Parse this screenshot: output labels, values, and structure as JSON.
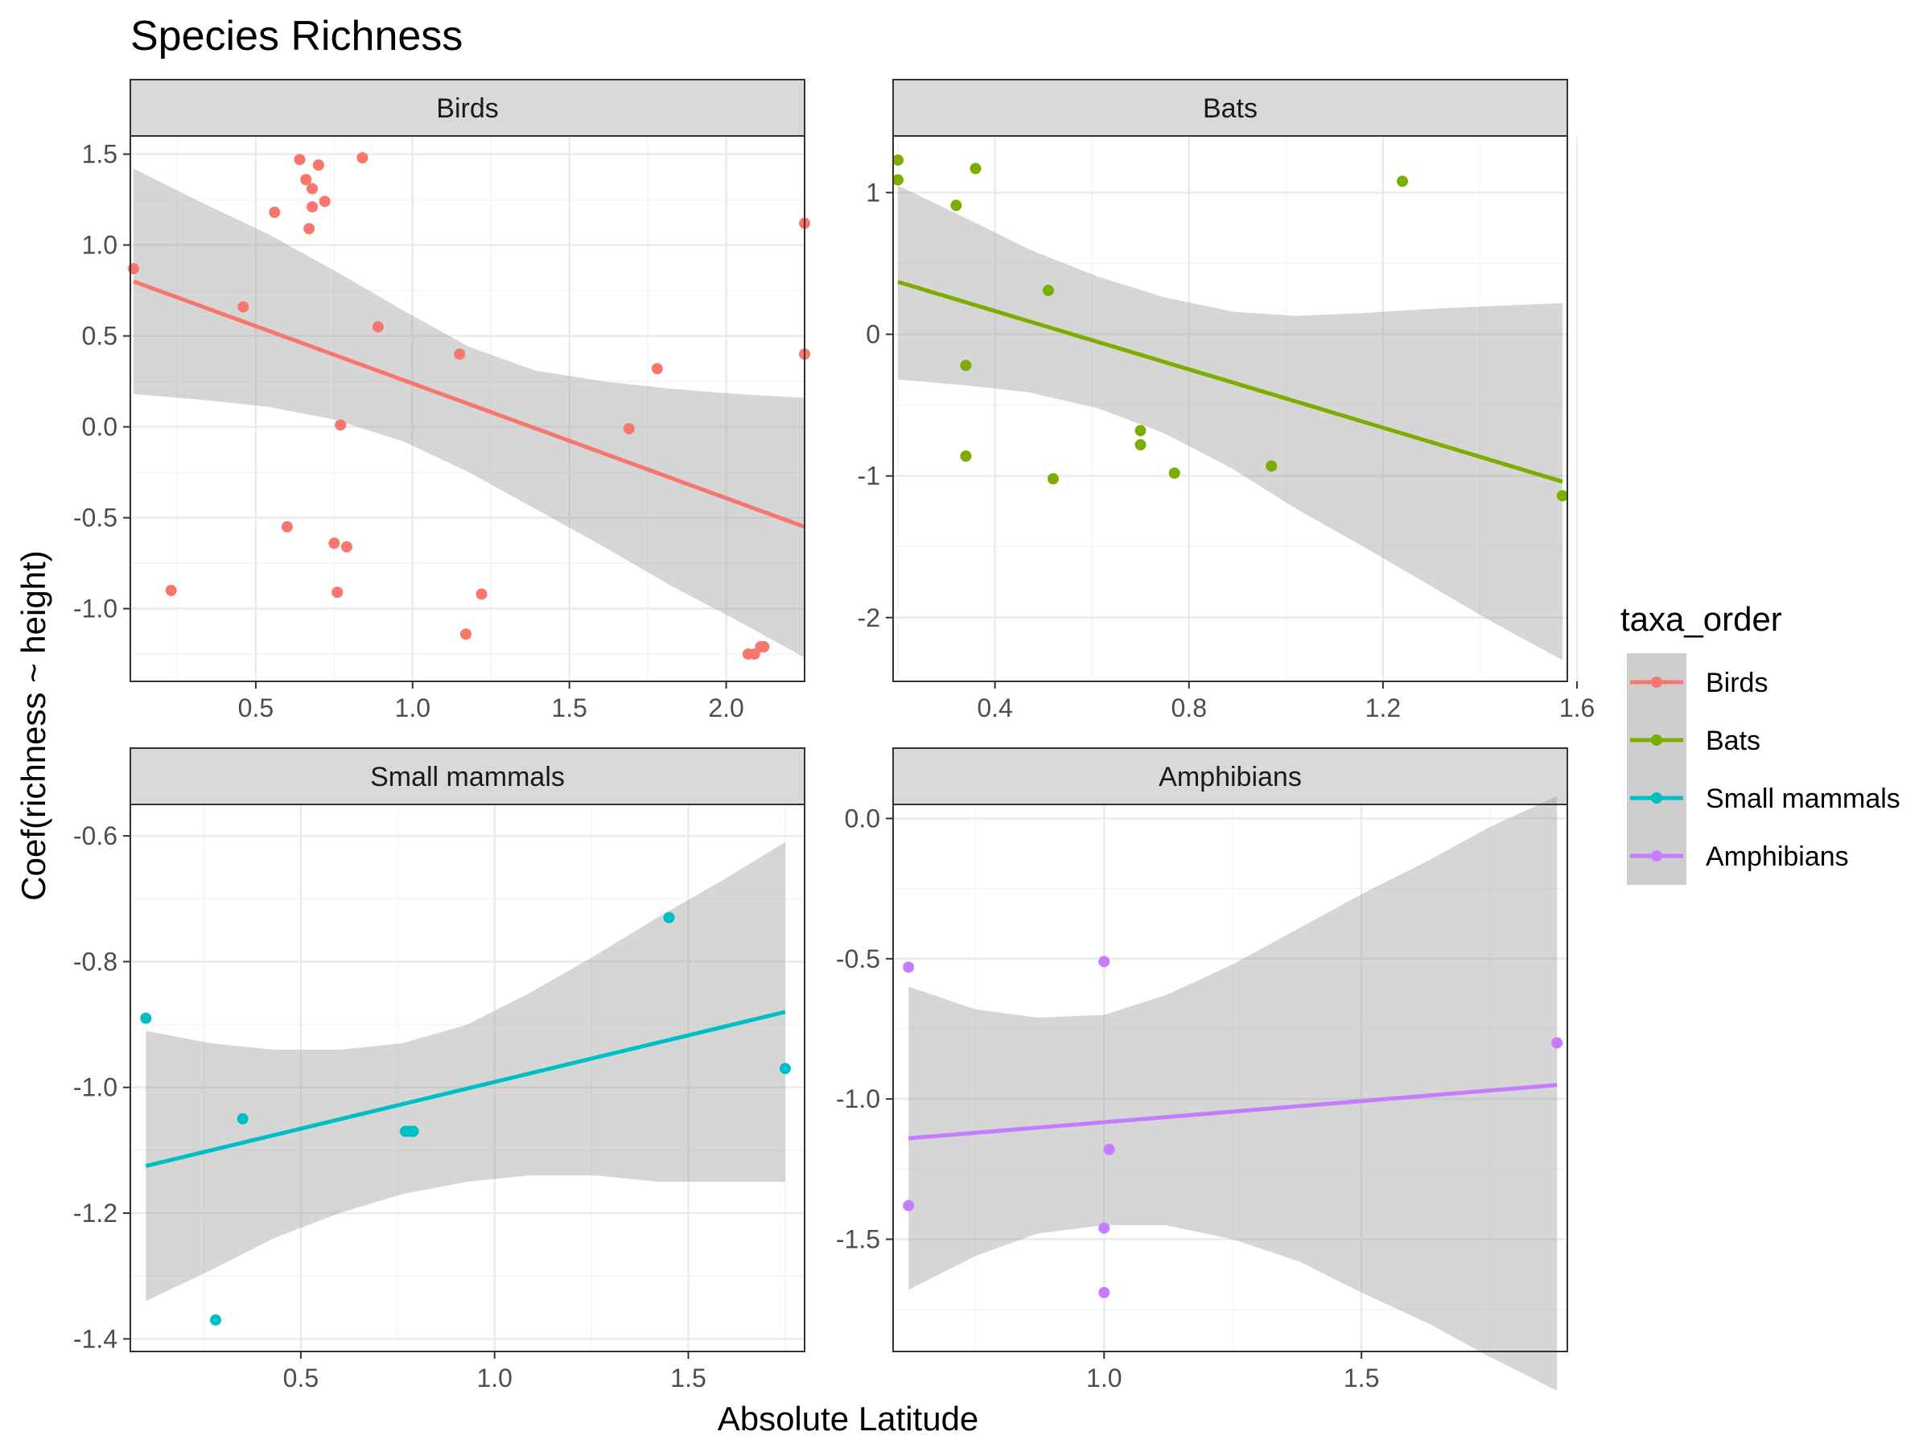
{
  "chart_data": {
    "type": "scatter",
    "title": "Species Richness",
    "xlabel": "Absolute Latitude",
    "ylabel": "Coef(richness ~ height)",
    "grid": true,
    "legend": {
      "title": "taxa_order",
      "position": "right",
      "entries": [
        "Birds",
        "Bats",
        "Small mammals",
        "Amphibians"
      ]
    },
    "colors": {
      "Birds": "#F8766D",
      "Bats": "#7CAE00",
      "Small mammals": "#00BFC4",
      "Amphibians": "#C77CFF",
      "ribbon": "#999999",
      "strip_bg": "#D9D9D9",
      "grid_major": "#EBEBEB",
      "grid_minor": "#F5F5F5"
    },
    "panels": [
      {
        "name": "Birds",
        "xlim": [
          0.1,
          2.25
        ],
        "ylim": [
          -1.4,
          1.6
        ],
        "xticks": [
          0.5,
          1.0,
          1.5,
          2.0
        ],
        "xtick_labels": [
          "0.5",
          "1.0",
          "1.5",
          "2.0"
        ],
        "yticks": [
          -1.0,
          -0.5,
          0.0,
          0.5,
          1.0,
          1.5
        ],
        "ytick_labels": [
          "-1.0",
          "-0.5",
          "0.0",
          "0.5",
          "1.0",
          "1.5"
        ],
        "x": [
          0.11,
          0.23,
          0.46,
          0.56,
          0.6,
          0.64,
          0.66,
          0.67,
          0.68,
          0.68,
          0.7,
          0.72,
          0.75,
          0.76,
          0.77,
          0.79,
          0.84,
          0.89,
          1.15,
          1.17,
          1.22,
          1.69,
          1.78,
          2.07,
          2.09,
          2.11,
          2.12,
          2.25,
          2.25
        ],
        "y": [
          0.87,
          -0.9,
          0.66,
          1.18,
          -0.55,
          1.47,
          1.36,
          1.09,
          1.31,
          1.21,
          1.44,
          1.24,
          -0.64,
          -0.91,
          0.01,
          -0.66,
          1.48,
          0.55,
          0.4,
          -1.14,
          -0.92,
          -0.01,
          0.32,
          -1.25,
          -1.25,
          -1.21,
          -1.21,
          1.12,
          0.4
        ],
        "fit": {
          "x": [
            0.11,
            2.25
          ],
          "y": [
            0.8,
            -0.55
          ]
        },
        "band": {
          "x": [
            0.11,
            0.32,
            0.54,
            0.75,
            0.97,
            1.18,
            1.39,
            1.61,
            1.82,
            2.04,
            2.25
          ],
          "lower": [
            0.18,
            0.15,
            0.11,
            0.04,
            -0.08,
            -0.25,
            -0.45,
            -0.66,
            -0.87,
            -1.07,
            -1.27
          ],
          "upper": [
            1.42,
            1.24,
            1.06,
            0.86,
            0.64,
            0.44,
            0.31,
            0.25,
            0.21,
            0.18,
            0.16
          ]
        }
      },
      {
        "name": "Bats",
        "xlim": [
          0.19,
          1.58
        ],
        "ylim": [
          -2.45,
          1.4
        ],
        "xticks": [
          0.4,
          0.8,
          1.2,
          1.6
        ],
        "xtick_labels": [
          "0.4",
          "0.8",
          "1.2",
          "1.6"
        ],
        "yticks": [
          -2,
          -1,
          0,
          1
        ],
        "ytick_labels": [
          "-2",
          "-1",
          "0",
          "1"
        ],
        "x": [
          0.2,
          0.2,
          0.32,
          0.34,
          0.34,
          0.36,
          0.51,
          0.52,
          0.7,
          0.7,
          0.77,
          0.97,
          1.24,
          1.57
        ],
        "y": [
          1.23,
          1.09,
          0.91,
          -0.22,
          -0.86,
          1.17,
          0.31,
          -1.02,
          -0.68,
          -0.78,
          -0.98,
          -0.93,
          1.08,
          -1.14
        ],
        "fit": {
          "x": [
            0.2,
            1.57
          ],
          "y": [
            0.37,
            -1.04
          ]
        },
        "band": {
          "x": [
            0.2,
            0.34,
            0.47,
            0.61,
            0.75,
            0.89,
            1.02,
            1.16,
            1.3,
            1.43,
            1.57
          ],
          "lower": [
            -0.32,
            -0.36,
            -0.41,
            -0.52,
            -0.7,
            -0.95,
            -1.23,
            -1.5,
            -1.78,
            -2.04,
            -2.3
          ],
          "upper": [
            1.05,
            0.82,
            0.6,
            0.41,
            0.26,
            0.16,
            0.13,
            0.15,
            0.18,
            0.2,
            0.22
          ]
        }
      },
      {
        "name": "Small mammals",
        "xlim": [
          0.06,
          1.8
        ],
        "ylim": [
          -1.42,
          -0.55
        ],
        "xticks": [
          0.5,
          1.0,
          1.5
        ],
        "xtick_labels": [
          "0.5",
          "1.0",
          "1.5"
        ],
        "yticks": [
          -1.4,
          -1.2,
          -1.0,
          -0.8,
          -0.6
        ],
        "ytick_labels": [
          "-1.4",
          "-1.2",
          "-1.0",
          "-0.8",
          "-0.6"
        ],
        "x": [
          0.1,
          0.28,
          0.35,
          0.77,
          0.78,
          0.79,
          1.45,
          1.75
        ],
        "y": [
          -0.89,
          -1.37,
          -1.05,
          -1.07,
          -1.07,
          -1.07,
          -0.73,
          -0.97
        ],
        "fit": {
          "x": [
            0.1,
            1.75
          ],
          "y": [
            -1.125,
            -0.88
          ]
        },
        "band": {
          "x": [
            0.1,
            0.27,
            0.43,
            0.6,
            0.76,
            0.93,
            1.09,
            1.26,
            1.42,
            1.59,
            1.75
          ],
          "lower": [
            -1.34,
            -1.29,
            -1.24,
            -1.2,
            -1.17,
            -1.15,
            -1.14,
            -1.14,
            -1.15,
            -1.15,
            -1.15
          ],
          "upper": [
            -0.91,
            -0.93,
            -0.94,
            -0.94,
            -0.93,
            -0.9,
            -0.85,
            -0.79,
            -0.73,
            -0.67,
            -0.61
          ]
        }
      },
      {
        "name": "Amphibians",
        "xlim": [
          0.59,
          1.9
        ],
        "ylim": [
          -1.9,
          0.05
        ],
        "xticks": [
          1.0,
          1.5
        ],
        "xtick_labels": [
          "1.0",
          "1.5"
        ],
        "yticks": [
          -1.5,
          -1.0,
          -0.5,
          0.0
        ],
        "ytick_labels": [
          "-1.5",
          "-1.0",
          "-0.5",
          "0.0"
        ],
        "x": [
          0.62,
          0.62,
          1.0,
          1.0,
          1.0,
          1.01,
          1.88
        ],
        "y": [
          -0.53,
          -1.38,
          -0.51,
          -1.46,
          -1.69,
          -1.18,
          -0.8
        ],
        "fit": {
          "x": [
            0.62,
            1.88
          ],
          "y": [
            -1.14,
            -0.95
          ]
        },
        "band": {
          "x": [
            0.62,
            0.75,
            0.87,
            1.0,
            1.12,
            1.25,
            1.38,
            1.5,
            1.63,
            1.75,
            1.88
          ],
          "lower": [
            -1.68,
            -1.56,
            -1.48,
            -1.45,
            -1.45,
            -1.5,
            -1.58,
            -1.69,
            -1.8,
            -1.92,
            -2.04
          ],
          "upper": [
            -0.6,
            -0.68,
            -0.71,
            -0.7,
            -0.63,
            -0.52,
            -0.39,
            -0.27,
            -0.15,
            -0.03,
            0.08
          ]
        }
      }
    ]
  }
}
